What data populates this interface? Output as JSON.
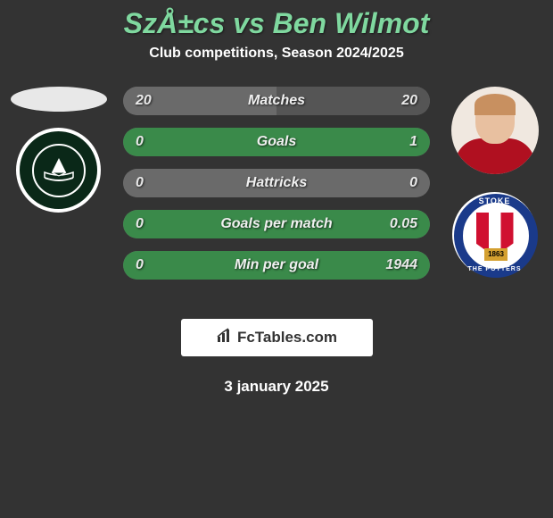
{
  "title": "SzÅ±cs vs Ben Wilmot",
  "subtitle": "Club competitions, Season 2024/2025",
  "date": "3 january 2025",
  "logo": {
    "brand_bold": "Fc",
    "brand_rest": "Tables.com"
  },
  "colors": {
    "title": "#7fd89f",
    "background": "#333333",
    "bar_grey": "#6a6a6a",
    "bar_dark_grey": "#555555",
    "bar_green": "#3a8a4a",
    "bar_light_green": "#4aa858"
  },
  "stats": [
    {
      "label": "Matches",
      "left_value": "20",
      "right_value": "20",
      "left_color": "#6a6a6a",
      "right_color": "#555555",
      "left_pct": 50,
      "right_pct": 50
    },
    {
      "label": "Goals",
      "left_value": "0",
      "right_value": "1",
      "left_color": "#6a6a6a",
      "right_color": "#3a8a4a",
      "left_pct": 0,
      "right_pct": 100
    },
    {
      "label": "Hattricks",
      "left_value": "0",
      "right_value": "0",
      "left_color": "#6a6a6a",
      "right_color": "#6a6a6a",
      "left_pct": 100,
      "right_pct": 0
    },
    {
      "label": "Goals per match",
      "left_value": "0",
      "right_value": "0.05",
      "left_color": "#6a6a6a",
      "right_color": "#3a8a4a",
      "left_pct": 0,
      "right_pct": 100
    },
    {
      "label": "Min per goal",
      "left_value": "0",
      "right_value": "1944",
      "left_color": "#6a6a6a",
      "right_color": "#3a8a4a",
      "left_pct": 0,
      "right_pct": 100
    }
  ],
  "left_club": {
    "name": "Plymouth"
  },
  "right_club": {
    "name": "Stoke City",
    "year": "1863",
    "top_text": "STOKE",
    "bottom_text": "THE POTTERS"
  }
}
